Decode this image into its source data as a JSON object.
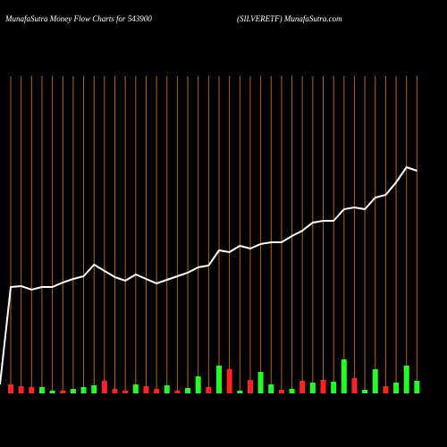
{
  "chart_data": {
    "type": "line",
    "title": "MunafaSutra  Money Flow  Charts for 543900",
    "subtitle": "(SILVERETF) MunafaSutra.com",
    "values": [
      70,
      179,
      180,
      176,
      179,
      179,
      184,
      188,
      191,
      204,
      197,
      190,
      186,
      193,
      188,
      183,
      187,
      191,
      195,
      201,
      203,
      220,
      218,
      225,
      222,
      227,
      229,
      229,
      236,
      242,
      251,
      253,
      253,
      266,
      268,
      266,
      279,
      282,
      296,
      313,
      309
    ],
    "color": "#ffffff",
    "ylim": [
      0,
      500
    ],
    "volumes": [
      null,
      10,
      8,
      7,
      7,
      3,
      3,
      5,
      7,
      9,
      14,
      5,
      3,
      10,
      8,
      5,
      9,
      3,
      6,
      19,
      7,
      31,
      27,
      3,
      15,
      24,
      10,
      4,
      5,
      14,
      12,
      15,
      13,
      38,
      17,
      4,
      27,
      8,
      12,
      31,
      14
    ],
    "volume_colors": [
      null,
      "#ff2222",
      "#ff2222",
      "#ff2222",
      "#22ff22",
      "#22ff22",
      "#ff2222",
      "#22ff22",
      "#22ff22",
      "#22ff22",
      "#ff2222",
      "#ff2222",
      "#ff2222",
      "#22ff22",
      "#ff2222",
      "#ff2222",
      "#22ff22",
      "#ff2222",
      "#22ff22",
      "#22ff22",
      "#ff2222",
      "#22ff22",
      "#ff2222",
      "#22ff22",
      "#ff2222",
      "#22ff22",
      "#22ff22",
      "#ff2222",
      "#22ff22",
      "#ff2222",
      "#22ff22",
      "#ff2222",
      "#22ff22",
      "#22ff22",
      "#ff2222",
      "#22ff22",
      "#22ff22",
      "#ff2222",
      "#22ff22",
      "#22ff22",
      "#22ff22"
    ],
    "gridline_color": "#b8650a"
  }
}
